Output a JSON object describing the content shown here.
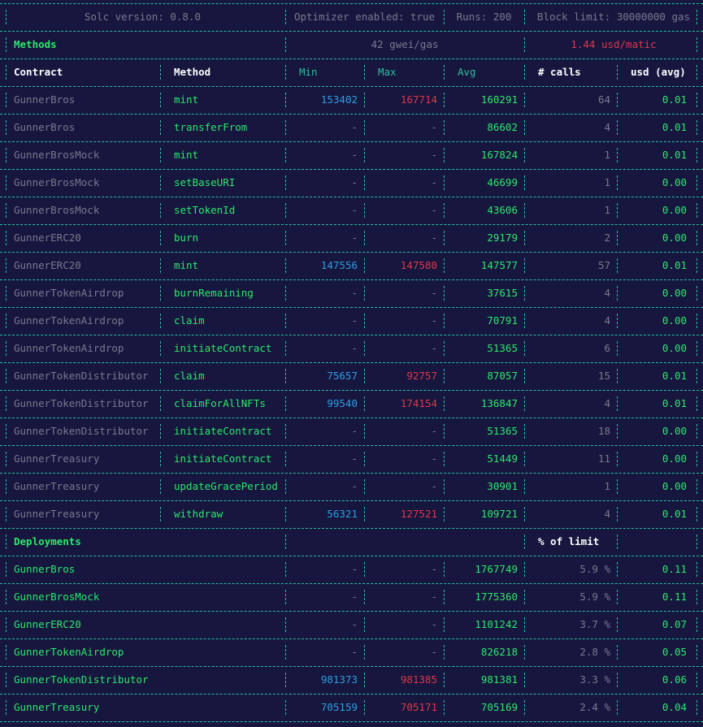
{
  "colors": {
    "bg": "#16163f",
    "border": "#2bbfa0",
    "dim": "#7a7a90",
    "green": "#2ee86a",
    "blue": "#2f9ee0",
    "red": "#e0384a"
  },
  "config": {
    "solc": "Solc version: 0.8.0",
    "optimizer": "Optimizer enabled: true",
    "runs": "Runs: 200",
    "block_limit": "Block limit: 30000000 gas"
  },
  "methods_header": {
    "title": "Methods",
    "gwei": "42 gwei/gas",
    "price": "1.44 usd/matic"
  },
  "columns": {
    "contract": "Contract",
    "method": "Method",
    "min": "Min",
    "max": "Max",
    "avg": "Avg",
    "calls": "# calls",
    "usd": "usd (avg)"
  },
  "methods": [
    {
      "contract": "GunnerBros",
      "method": "mint",
      "min": "153402",
      "max": "167714",
      "avg": "160291",
      "calls": "64",
      "usd": "0.01"
    },
    {
      "contract": "GunnerBros",
      "method": "transferFrom",
      "min": "-",
      "max": "-",
      "avg": "86602",
      "calls": "4",
      "usd": "0.01"
    },
    {
      "contract": "GunnerBrosMock",
      "method": "mint",
      "min": "-",
      "max": "-",
      "avg": "167824",
      "calls": "1",
      "usd": "0.01"
    },
    {
      "contract": "GunnerBrosMock",
      "method": "setBaseURI",
      "min": "-",
      "max": "-",
      "avg": "46699",
      "calls": "1",
      "usd": "0.00"
    },
    {
      "contract": "GunnerBrosMock",
      "method": "setTokenId",
      "min": "-",
      "max": "-",
      "avg": "43606",
      "calls": "1",
      "usd": "0.00"
    },
    {
      "contract": "GunnerERC20",
      "method": "burn",
      "min": "-",
      "max": "-",
      "avg": "29179",
      "calls": "2",
      "usd": "0.00"
    },
    {
      "contract": "GunnerERC20",
      "method": "mint",
      "min": "147556",
      "max": "147580",
      "avg": "147577",
      "calls": "57",
      "usd": "0.01"
    },
    {
      "contract": "GunnerTokenAirdrop",
      "method": "burnRemaining",
      "min": "-",
      "max": "-",
      "avg": "37615",
      "calls": "4",
      "usd": "0.00"
    },
    {
      "contract": "GunnerTokenAirdrop",
      "method": "claim",
      "min": "-",
      "max": "-",
      "avg": "70791",
      "calls": "4",
      "usd": "0.00"
    },
    {
      "contract": "GunnerTokenAirdrop",
      "method": "initiateContract",
      "min": "-",
      "max": "-",
      "avg": "51365",
      "calls": "6",
      "usd": "0.00"
    },
    {
      "contract": "GunnerTokenDistributor",
      "method": "claim",
      "min": "75657",
      "max": "92757",
      "avg": "87057",
      "calls": "15",
      "usd": "0.01"
    },
    {
      "contract": "GunnerTokenDistributor",
      "method": "claimForAllNFTs",
      "min": "99540",
      "max": "174154",
      "avg": "136847",
      "calls": "4",
      "usd": "0.01"
    },
    {
      "contract": "GunnerTokenDistributor",
      "method": "initiateContract",
      "min": "-",
      "max": "-",
      "avg": "51365",
      "calls": "18",
      "usd": "0.00"
    },
    {
      "contract": "GunnerTreasury",
      "method": "initiateContract",
      "min": "-",
      "max": "-",
      "avg": "51449",
      "calls": "11",
      "usd": "0.00"
    },
    {
      "contract": "GunnerTreasury",
      "method": "updateGracePeriod",
      "min": "-",
      "max": "-",
      "avg": "30901",
      "calls": "1",
      "usd": "0.00"
    },
    {
      "contract": "GunnerTreasury",
      "method": "withdraw",
      "min": "56321",
      "max": "127521",
      "avg": "109721",
      "calls": "4",
      "usd": "0.01"
    }
  ],
  "deployments_header": {
    "title": "Deployments",
    "limit": "% of limit"
  },
  "deployments": [
    {
      "contract": "GunnerBros",
      "min": "-",
      "max": "-",
      "avg": "1767749",
      "limit": "5.9 %",
      "usd": "0.11"
    },
    {
      "contract": "GunnerBrosMock",
      "min": "-",
      "max": "-",
      "avg": "1775360",
      "limit": "5.9 %",
      "usd": "0.11"
    },
    {
      "contract": "GunnerERC20",
      "min": "-",
      "max": "-",
      "avg": "1101242",
      "limit": "3.7 %",
      "usd": "0.07"
    },
    {
      "contract": "GunnerTokenAirdrop",
      "min": "-",
      "max": "-",
      "avg": "826218",
      "limit": "2.8 %",
      "usd": "0.05"
    },
    {
      "contract": "GunnerTokenDistributor",
      "min": "981373",
      "max": "981385",
      "avg": "981381",
      "limit": "3.3 %",
      "usd": "0.06"
    },
    {
      "contract": "GunnerTreasury",
      "min": "705159",
      "max": "705171",
      "avg": "705169",
      "limit": "2.4 %",
      "usd": "0.04"
    }
  ]
}
